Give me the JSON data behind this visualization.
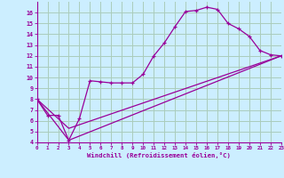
{
  "xlabel": "Windchill (Refroidissement éolien,°C)",
  "bg_color": "#cceeff",
  "grid_color": "#aaccbb",
  "line_color": "#990099",
  "xmin": 0,
  "xmax": 23,
  "ymin": 4,
  "ymax": 17,
  "line1_x": [
    0,
    1,
    2,
    3,
    4,
    5,
    6,
    7,
    8,
    9,
    10,
    11,
    12,
    13,
    14,
    15,
    16,
    17,
    18,
    19,
    20,
    21,
    22,
    23
  ],
  "line1_y": [
    8.0,
    6.5,
    6.5,
    4.2,
    6.2,
    9.7,
    9.6,
    9.5,
    9.5,
    9.5,
    10.3,
    12.0,
    13.2,
    14.7,
    16.1,
    16.2,
    16.5,
    16.3,
    15.0,
    14.5,
    13.8,
    12.5,
    12.1,
    12.0
  ],
  "line2_x": [
    0,
    3,
    23
  ],
  "line2_y": [
    8.0,
    4.2,
    12.0
  ],
  "line3_x": [
    0,
    3,
    23
  ],
  "line3_y": [
    8.0,
    5.3,
    12.0
  ],
  "yticks": [
    4,
    5,
    6,
    7,
    8,
    9,
    10,
    11,
    12,
    13,
    14,
    15,
    16
  ],
  "xticks": [
    0,
    1,
    2,
    3,
    4,
    5,
    6,
    7,
    8,
    9,
    10,
    11,
    12,
    13,
    14,
    15,
    16,
    17,
    18,
    19,
    20,
    21,
    22,
    23
  ]
}
